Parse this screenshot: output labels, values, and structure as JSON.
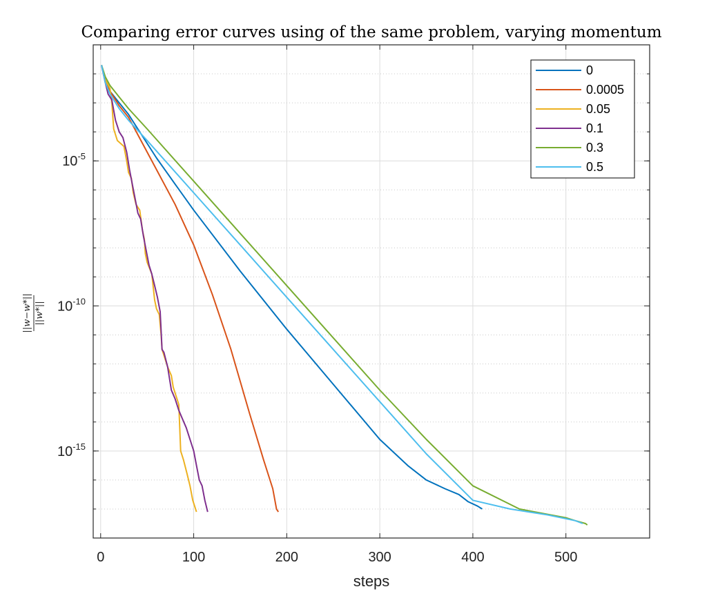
{
  "chart_data": {
    "type": "line",
    "title": "Comparing error curves using of the same problem, varying momentum",
    "xlabel": "steps",
    "ylabel_num": "||w−w*||",
    "ylabel_den": "||w*||",
    "xlim": [
      -8,
      590
    ],
    "ylim_exp": [
      -17,
      -1
    ],
    "yscale": "log",
    "grid": true,
    "legend_position": "top-right",
    "xticks": [
      0,
      100,
      200,
      300,
      400,
      500
    ],
    "yticks": [
      {
        "base": "10",
        "exp": "-5",
        "value_exp": -5
      },
      {
        "base": "10",
        "exp": "-10",
        "value_exp": -10
      },
      {
        "base": "10",
        "exp": "-15",
        "value_exp": -15
      }
    ],
    "series": [
      {
        "name": "0",
        "color": "#0072BD",
        "points": [
          [
            1,
            -1.7
          ],
          [
            5,
            -2.3
          ],
          [
            10,
            -2.6
          ],
          [
            20,
            -3.0
          ],
          [
            30,
            -3.4
          ],
          [
            40,
            -3.9
          ],
          [
            60,
            -4.9
          ],
          [
            80,
            -5.8
          ],
          [
            100,
            -6.7
          ],
          [
            150,
            -8.8
          ],
          [
            200,
            -10.8
          ],
          [
            250,
            -12.7
          ],
          [
            300,
            -14.6
          ],
          [
            330,
            -15.5
          ],
          [
            350,
            -16.0
          ],
          [
            370,
            -16.3
          ],
          [
            385,
            -16.5
          ],
          [
            395,
            -16.75
          ],
          [
            405,
            -16.9
          ],
          [
            410,
            -17.0
          ]
        ]
      },
      {
        "name": "0.0005",
        "color": "#D95319",
        "points": [
          [
            1,
            -1.7
          ],
          [
            5,
            -2.3
          ],
          [
            10,
            -2.6
          ],
          [
            20,
            -3.1
          ],
          [
            30,
            -3.5
          ],
          [
            40,
            -4.1
          ],
          [
            60,
            -5.3
          ],
          [
            80,
            -6.5
          ],
          [
            100,
            -7.9
          ],
          [
            120,
            -9.6
          ],
          [
            140,
            -11.5
          ],
          [
            160,
            -13.7
          ],
          [
            175,
            -15.3
          ],
          [
            185,
            -16.3
          ],
          [
            189,
            -17.0
          ],
          [
            191,
            -17.1
          ]
        ]
      },
      {
        "name": "0.05",
        "color": "#EDB120",
        "points": [
          [
            1,
            -1.7
          ],
          [
            5,
            -2.2
          ],
          [
            10,
            -2.5
          ],
          [
            12,
            -3.0
          ],
          [
            14,
            -3.9
          ],
          [
            18,
            -4.3
          ],
          [
            25,
            -4.5
          ],
          [
            28,
            -5.0
          ],
          [
            30,
            -5.4
          ],
          [
            33,
            -5.6
          ],
          [
            35,
            -6.1
          ],
          [
            38,
            -6.5
          ],
          [
            42,
            -6.7
          ],
          [
            45,
            -7.4
          ],
          [
            47,
            -7.7
          ],
          [
            48,
            -8.2
          ],
          [
            50,
            -8.5
          ],
          [
            55,
            -8.9
          ],
          [
            58,
            -9.8
          ],
          [
            60,
            -10.1
          ],
          [
            63,
            -10.3
          ],
          [
            65,
            -11.0
          ],
          [
            66,
            -11.5
          ],
          [
            68,
            -11.7
          ],
          [
            72,
            -12.1
          ],
          [
            76,
            -12.4
          ],
          [
            78,
            -12.8
          ],
          [
            80,
            -13.0
          ],
          [
            84,
            -13.4
          ],
          [
            86,
            -15.0
          ],
          [
            89,
            -15.3
          ],
          [
            93,
            -15.8
          ],
          [
            96,
            -16.2
          ],
          [
            99,
            -16.7
          ],
          [
            103,
            -17.1
          ]
        ]
      },
      {
        "name": "0.1",
        "color": "#7E2F8E",
        "points": [
          [
            1,
            -1.7
          ],
          [
            5,
            -2.3
          ],
          [
            8,
            -2.7
          ],
          [
            12,
            -2.9
          ],
          [
            16,
            -3.6
          ],
          [
            20,
            -4.0
          ],
          [
            24,
            -4.2
          ],
          [
            28,
            -4.7
          ],
          [
            31,
            -5.3
          ],
          [
            34,
            -5.8
          ],
          [
            37,
            -6.3
          ],
          [
            40,
            -6.8
          ],
          [
            43,
            -7.0
          ],
          [
            46,
            -7.6
          ],
          [
            49,
            -8.1
          ],
          [
            52,
            -8.6
          ],
          [
            55,
            -8.9
          ],
          [
            58,
            -9.3
          ],
          [
            61,
            -9.7
          ],
          [
            64,
            -10.2
          ],
          [
            66,
            -11.5
          ],
          [
            68,
            -11.6
          ],
          [
            72,
            -12.1
          ],
          [
            76,
            -12.9
          ],
          [
            80,
            -13.2
          ],
          [
            84,
            -13.6
          ],
          [
            88,
            -13.9
          ],
          [
            92,
            -14.2
          ],
          [
            96,
            -14.6
          ],
          [
            100,
            -15.0
          ],
          [
            103,
            -15.5
          ],
          [
            106,
            -16.0
          ],
          [
            109,
            -16.2
          ],
          [
            112,
            -16.7
          ],
          [
            115,
            -17.1
          ]
        ]
      },
      {
        "name": "0.3",
        "color": "#77AC30",
        "points": [
          [
            1,
            -1.7
          ],
          [
            5,
            -2.1
          ],
          [
            10,
            -2.4
          ],
          [
            20,
            -2.8
          ],
          [
            30,
            -3.2
          ],
          [
            50,
            -3.9
          ],
          [
            100,
            -5.7
          ],
          [
            150,
            -7.5
          ],
          [
            200,
            -9.3
          ],
          [
            250,
            -11.1
          ],
          [
            300,
            -12.9
          ],
          [
            350,
            -14.6
          ],
          [
            400,
            -16.2
          ],
          [
            450,
            -17.0
          ],
          [
            500,
            -17.3
          ],
          [
            510,
            -17.4
          ],
          [
            521,
            -17.5
          ],
          [
            523,
            -17.55
          ]
        ]
      },
      {
        "name": "0.5",
        "color": "#4DBEEE",
        "points": [
          [
            1,
            -1.7
          ],
          [
            5,
            -2.3
          ],
          [
            10,
            -2.7
          ],
          [
            20,
            -3.2
          ],
          [
            30,
            -3.6
          ],
          [
            50,
            -4.3
          ],
          [
            100,
            -6.1
          ],
          [
            150,
            -7.9
          ],
          [
            200,
            -9.7
          ],
          [
            250,
            -11.5
          ],
          [
            300,
            -13.3
          ],
          [
            350,
            -15.1
          ],
          [
            400,
            -16.7
          ],
          [
            440,
            -17.0
          ],
          [
            480,
            -17.2
          ],
          [
            510,
            -17.4
          ],
          [
            518,
            -17.5
          ]
        ]
      }
    ]
  }
}
